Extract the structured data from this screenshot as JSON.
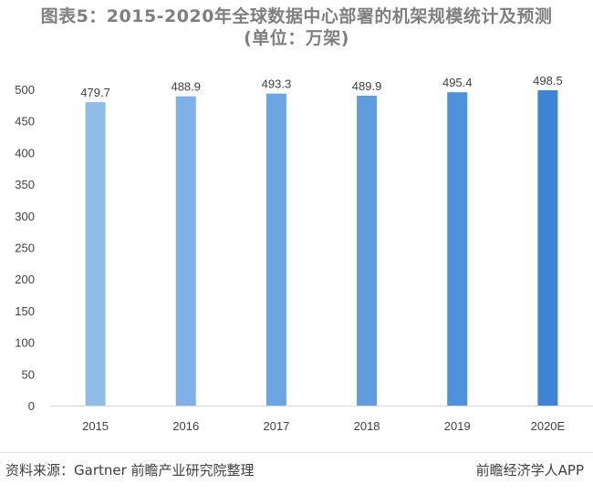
{
  "title": "图表5：2015-2020年全球数据中心部署的机架规模统计及预测",
  "subtitle": "(单位：万架)",
  "source": "资料来源：Gartner 前瞻产业研究院整理",
  "brand": "前瞻经济学人APP",
  "chart_data": {
    "type": "bar",
    "categories": [
      "2015",
      "2016",
      "2017",
      "2018",
      "2019",
      "2020E"
    ],
    "values": [
      479.7,
      488.9,
      493.3,
      489.9,
      495.4,
      498.5
    ],
    "ylim": [
      0,
      500
    ],
    "yticks": [
      0,
      50,
      100,
      150,
      200,
      250,
      300,
      350,
      400,
      450,
      500
    ],
    "grid": false,
    "legend": "none",
    "colors": [
      "#8fbde8",
      "#7eb2e6",
      "#6ca6e2",
      "#5f9ddf",
      "#4f92dc",
      "#3d84d6"
    ]
  }
}
